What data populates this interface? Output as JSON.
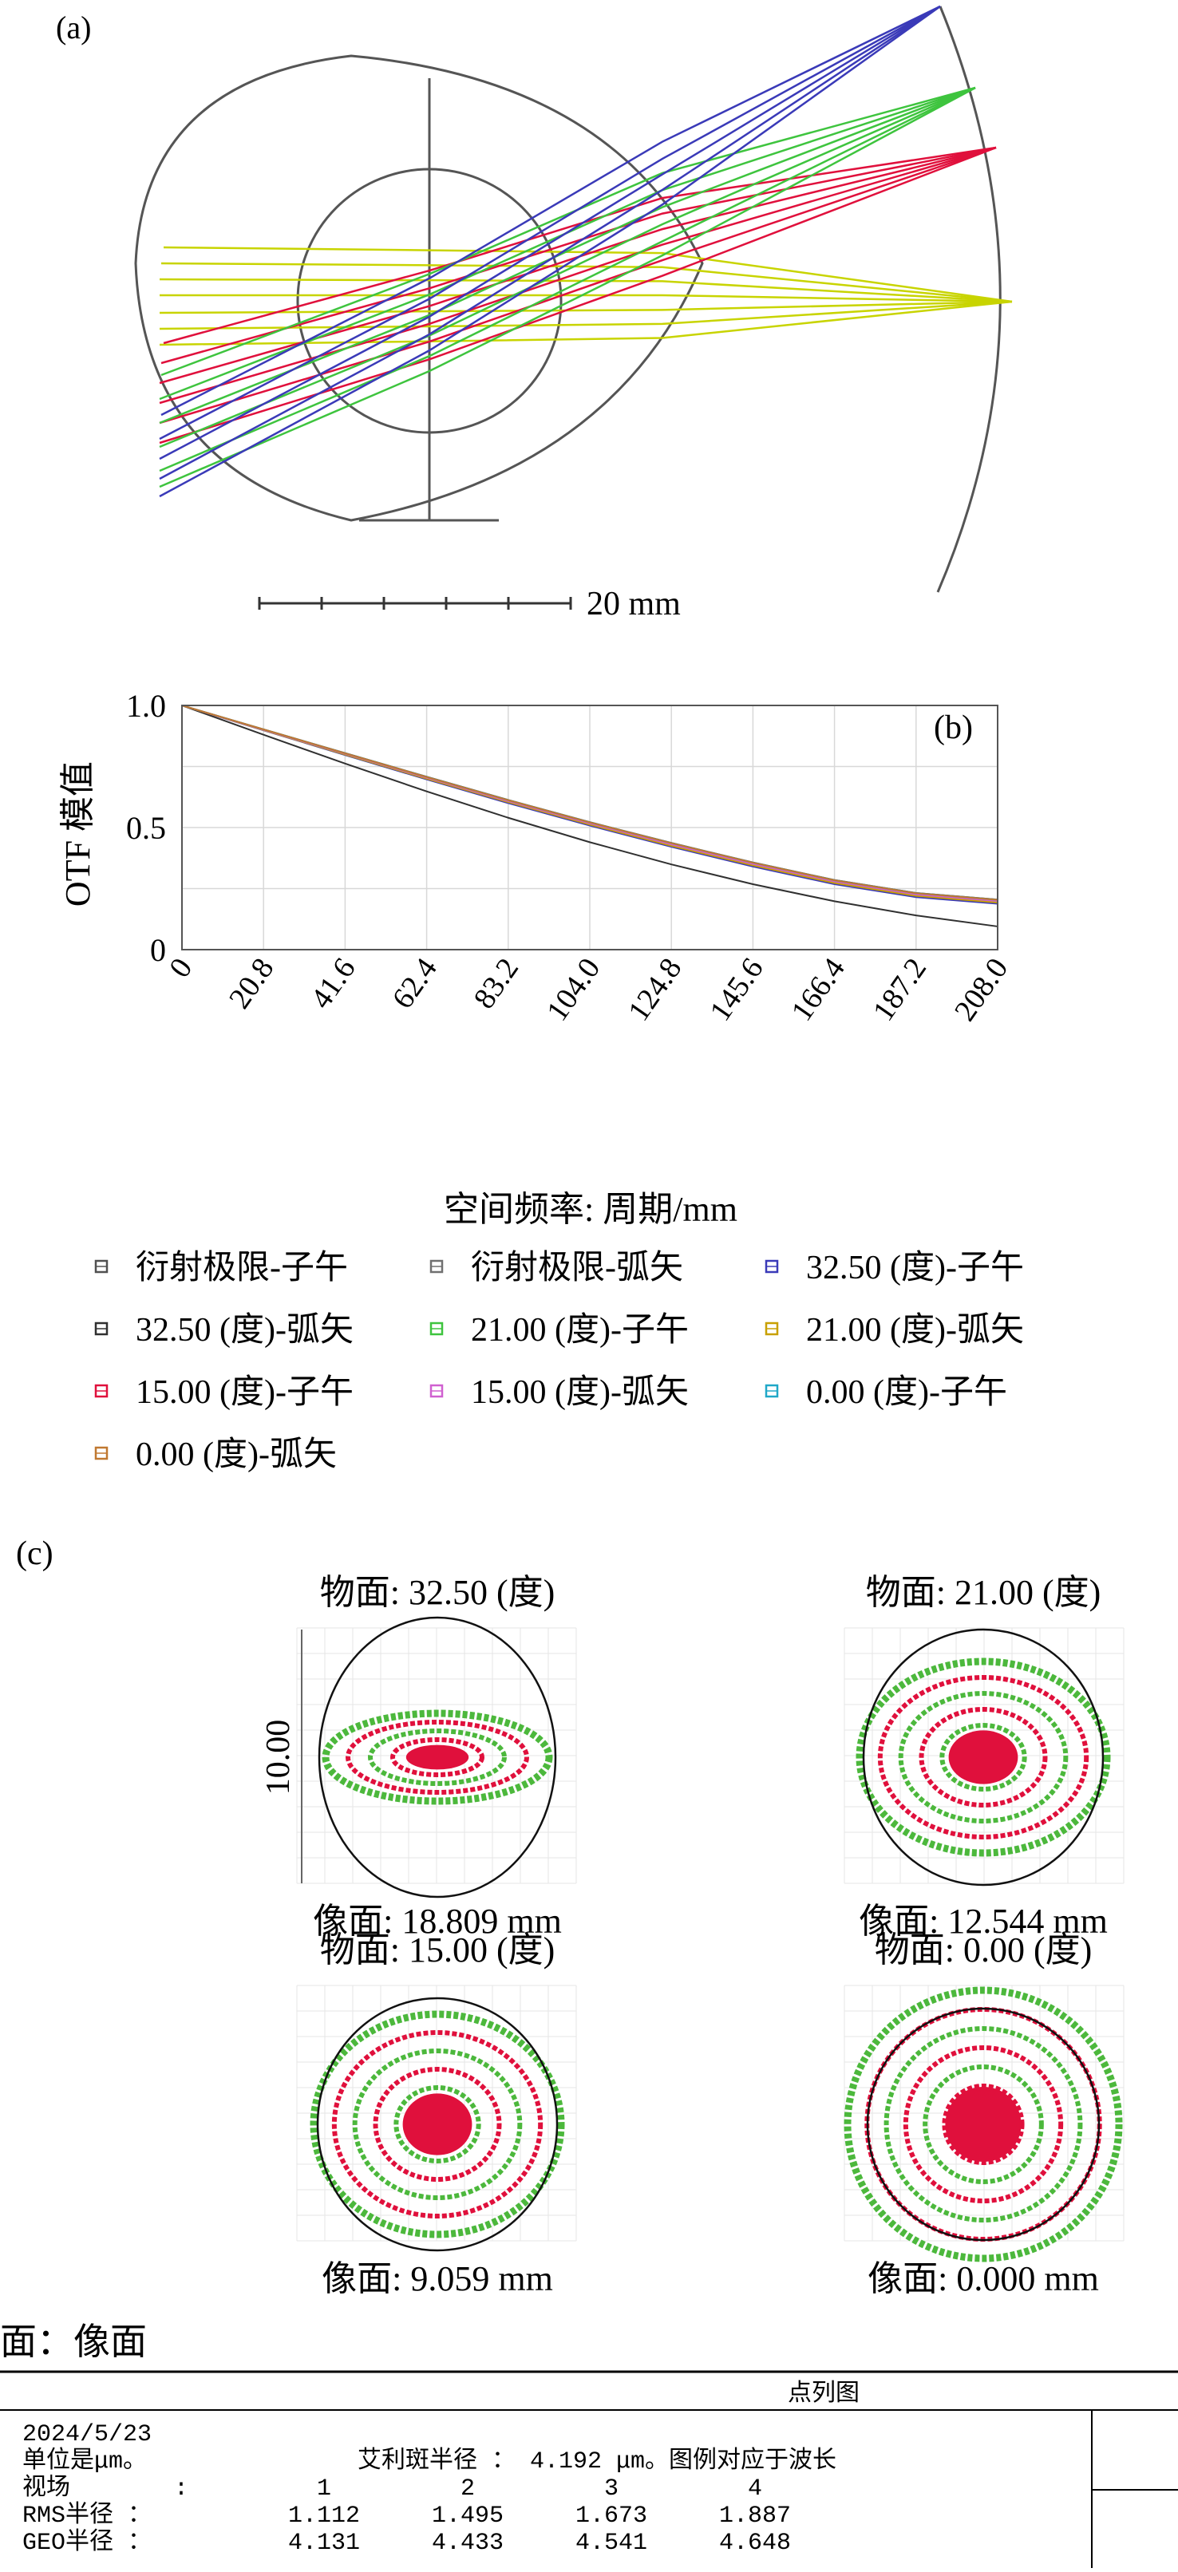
{
  "panel_a": {
    "label": "(a)",
    "scale_text": "20 mm",
    "colors": {
      "yellow": "#c8d400",
      "red": "#e0103c",
      "green": "#3ec43e",
      "blue": "#3a3ab8"
    }
  },
  "chart_data": {
    "type": "line",
    "label": "(b)",
    "title": "",
    "xlabel": "空间频率: 周期/mm",
    "ylabel": "OTF 模值",
    "xlim": [
      0,
      208
    ],
    "ylim": [
      0,
      1
    ],
    "x_ticks": [
      "0",
      "20.8",
      "41.6",
      "62.4",
      "83.2",
      "104.0",
      "124.8",
      "145.6",
      "166.4",
      "187.2",
      "208.0"
    ],
    "y_ticks": [
      "0",
      "0.5",
      "1.0"
    ],
    "grid": true,
    "x": [
      0,
      20.8,
      41.6,
      62.4,
      83.2,
      104.0,
      124.8,
      145.6,
      166.4,
      187.2,
      208.0
    ],
    "series": [
      {
        "name": "衍射极限-子午",
        "color": "#505050",
        "values": [
          1.0,
          0.902,
          0.805,
          0.708,
          0.613,
          0.522,
          0.437,
          0.357,
          0.285,
          0.232,
          0.205
        ]
      },
      {
        "name": "衍射极限-弧矢",
        "color": "#707070",
        "values": [
          1.0,
          0.902,
          0.805,
          0.708,
          0.613,
          0.522,
          0.437,
          0.357,
          0.285,
          0.232,
          0.205
        ]
      },
      {
        "name": "32.50 (度)-子午",
        "color": "#3a3ab8",
        "values": [
          1.0,
          0.898,
          0.797,
          0.697,
          0.6,
          0.508,
          0.421,
          0.34,
          0.268,
          0.215,
          0.188
        ]
      },
      {
        "name": "32.50 (度)-弧矢",
        "color": "#303030",
        "values": [
          1.0,
          0.88,
          0.762,
          0.648,
          0.54,
          0.44,
          0.349,
          0.268,
          0.198,
          0.14,
          0.095
        ]
      },
      {
        "name": "21.00 (度)-子午",
        "color": "#3ec43e",
        "values": [
          1.0,
          0.9,
          0.801,
          0.703,
          0.607,
          0.515,
          0.429,
          0.349,
          0.277,
          0.224,
          0.197
        ]
      },
      {
        "name": "21.00 (度)-弧矢",
        "color": "#c8a000",
        "values": [
          1.0,
          0.899,
          0.799,
          0.7,
          0.604,
          0.512,
          0.425,
          0.345,
          0.273,
          0.22,
          0.193
        ]
      },
      {
        "name": "15.00 (度)-子午",
        "color": "#e0103c",
        "values": [
          1.0,
          0.901,
          0.803,
          0.705,
          0.61,
          0.518,
          0.433,
          0.353,
          0.281,
          0.228,
          0.201
        ]
      },
      {
        "name": "15.00 (度)-弧矢",
        "color": "#d060d0",
        "values": [
          1.0,
          0.9,
          0.802,
          0.704,
          0.608,
          0.517,
          0.431,
          0.351,
          0.279,
          0.226,
          0.199
        ]
      },
      {
        "name": "0.00 (度)-子午",
        "color": "#20a8c8",
        "values": [
          1.0,
          0.902,
          0.804,
          0.707,
          0.612,
          0.521,
          0.436,
          0.356,
          0.284,
          0.231,
          0.204
        ]
      },
      {
        "name": "0.00 (度)-弧矢",
        "color": "#c07830",
        "values": [
          1.0,
          0.902,
          0.804,
          0.707,
          0.612,
          0.521,
          0.436,
          0.356,
          0.284,
          0.231,
          0.204
        ]
      }
    ]
  },
  "panel_c": {
    "label": "(c)",
    "scale_label": "10.00",
    "face_label": "面：像面",
    "spots": [
      {
        "object": "物面: 32.50 (度)",
        "image": "像面: 18.809 mm"
      },
      {
        "object": "物面: 21.00 (度)",
        "image": "像面: 12.544 mm"
      },
      {
        "object": "物面: 15.00 (度)",
        "image": "像面: 9.059 mm"
      },
      {
        "object": "物面: 0.00 (度)",
        "image": "像面: 0.000 mm"
      }
    ]
  },
  "footer": {
    "title": "点列图",
    "date": "2024/5/23",
    "unit": "单位是μm。",
    "airy": "艾利斑半径 ： 4.192 μm。图例对应于波长",
    "field_label": "视场",
    "field_colon": ":",
    "fields": [
      "1",
      "2",
      "3",
      "4"
    ],
    "rms_label": "RMS半径 ：",
    "rms": [
      "1.112",
      "1.495",
      "1.673",
      "1.887"
    ],
    "geo_label": "GEO半径 ：",
    "geo": [
      "4.131",
      "4.433",
      "4.541",
      "4.648"
    ]
  }
}
